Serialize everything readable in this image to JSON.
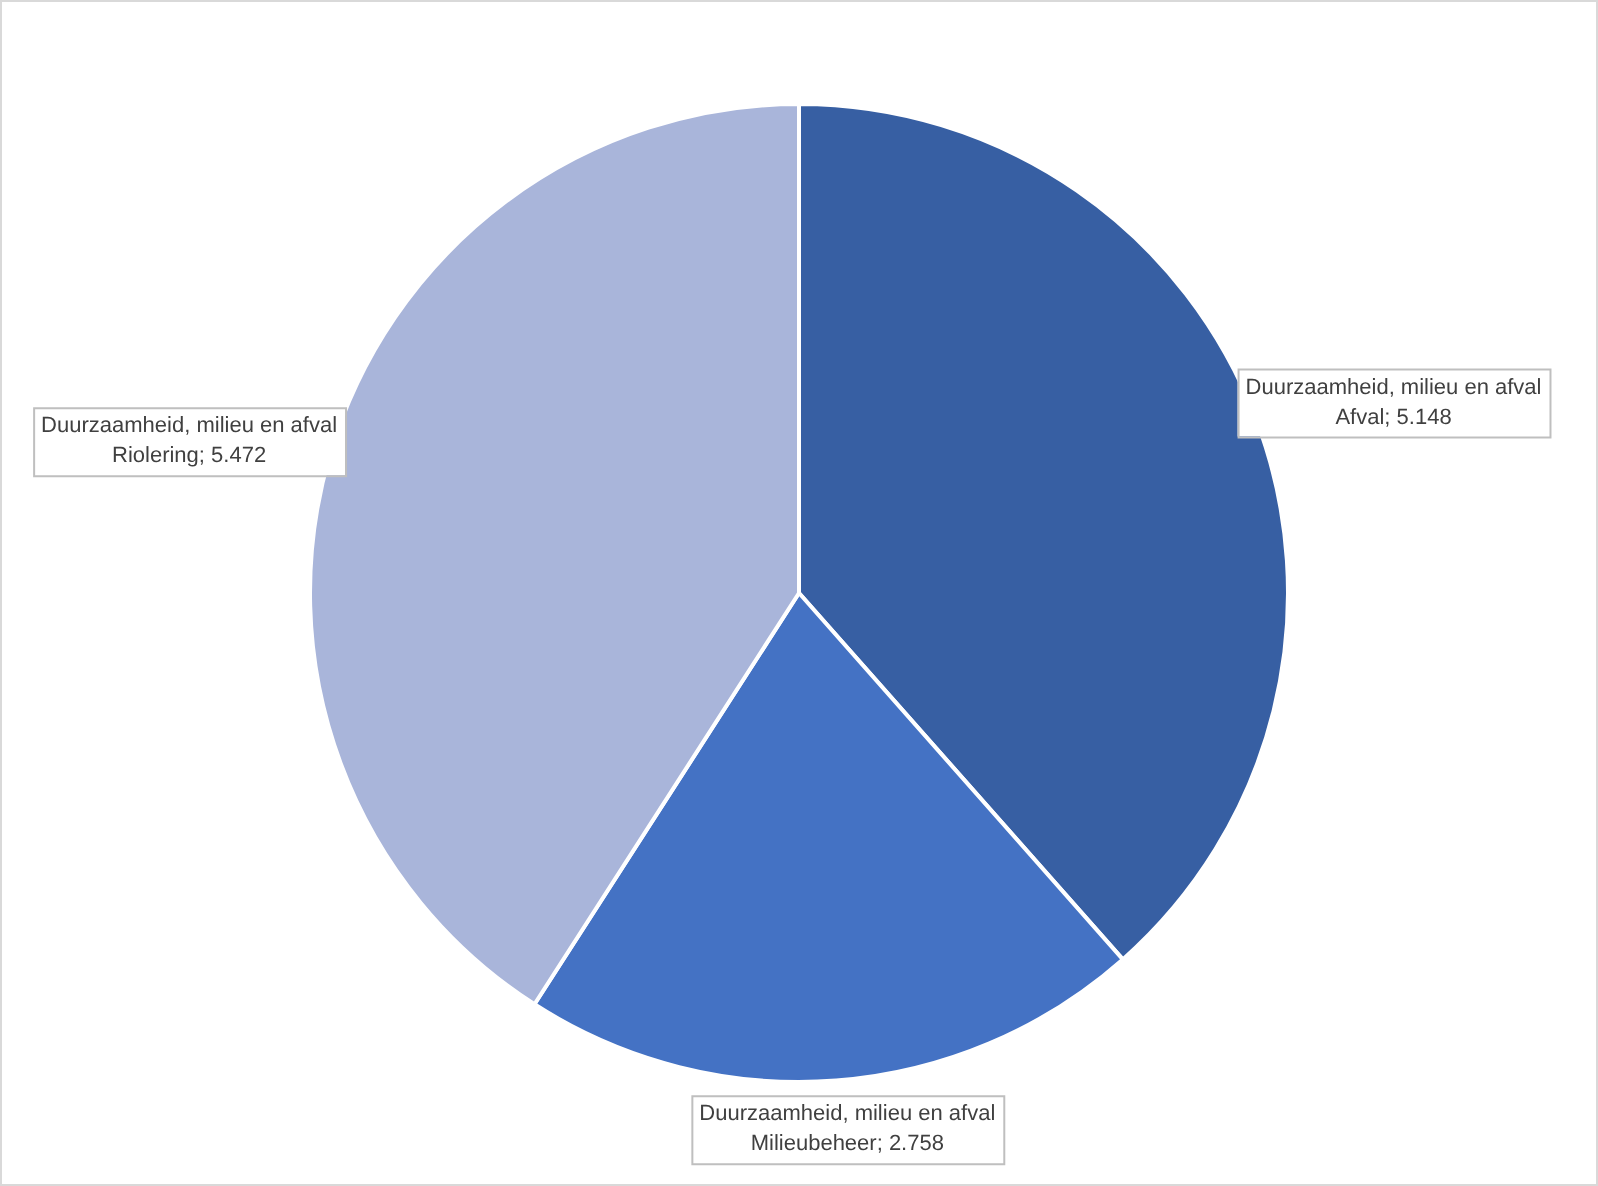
{
  "chart_data": {
    "type": "pie",
    "categories": [
      "Afval",
      "Milieubeheer",
      "Riolering"
    ],
    "series": [
      {
        "name": "Duurzaamheid, milieu en afval",
        "values": [
          5.148,
          2.758,
          5.472
        ],
        "colors": [
          "#375fa3",
          "#4472c4",
          "#a9b5da"
        ],
        "value_labels": [
          "5.148",
          "2.758",
          "5.472"
        ]
      }
    ],
    "legend": false
  }
}
